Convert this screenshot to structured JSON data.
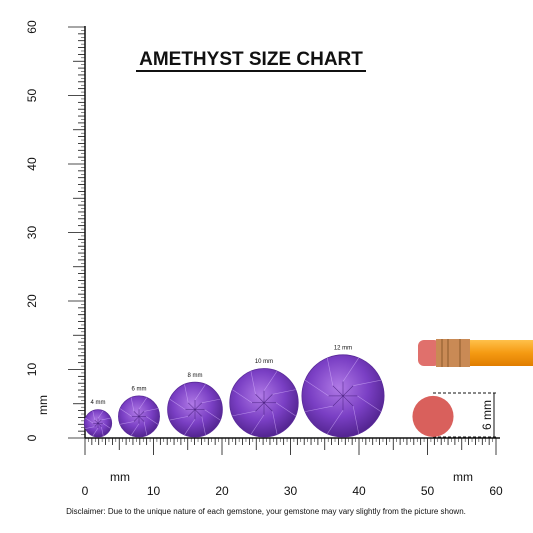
{
  "title": "AMETHYST SIZE CHART",
  "ruler": {
    "vertical_labels": [
      0,
      10,
      20,
      30,
      40,
      50,
      60
    ],
    "horizontal_labels": [
      0,
      10,
      20,
      30,
      40,
      50,
      60
    ],
    "vertical_unit": "mm",
    "horizontal_unit": "mm"
  },
  "gems": [
    {
      "label": "4 mm"
    },
    {
      "label": "6 mm"
    },
    {
      "label": "8 mm"
    },
    {
      "label": "10 mm"
    },
    {
      "label": "12 mm"
    }
  ],
  "eraser": {
    "label": "6 mm",
    "unit": "mm"
  },
  "disclaimer": "Disclaimer: Due to the unique nature of each gemstone, your gemstone may vary slightly from the picture shown."
}
